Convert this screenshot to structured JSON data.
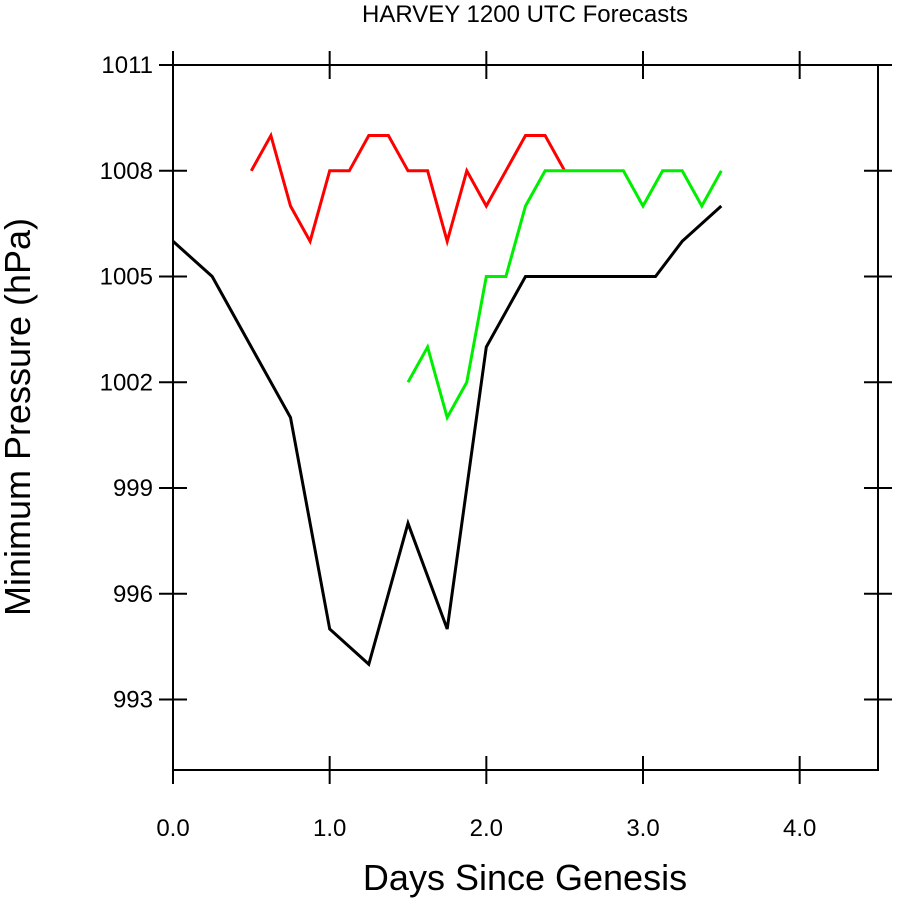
{
  "chart_data": {
    "type": "line",
    "title": "HARVEY 1200 UTC Forecasts",
    "xlabel": "Days Since Genesis",
    "ylabel": "Minimum Pressure (hPa)",
    "xlim": [
      0,
      4.5
    ],
    "ylim": [
      991,
      1011
    ],
    "x_ticks": [
      0,
      1,
      2,
      3,
      4
    ],
    "x_tick_labels": [
      "0.0",
      "1.0",
      "2.0",
      "3.0",
      "4.0"
    ],
    "y_ticks": [
      993,
      996,
      999,
      1002,
      1005,
      1008,
      1011
    ],
    "y_tick_labels": [
      "993",
      "996",
      "999",
      "1002",
      "1005",
      "1008",
      "1011"
    ],
    "grid": false,
    "series": [
      {
        "color": "#000000",
        "x": [
          0.0,
          0.25,
          0.5,
          0.75,
          1.0,
          1.25,
          1.5,
          1.75,
          2.0,
          2.25,
          2.5,
          2.75,
          3.0,
          3.08,
          3.25,
          3.5
        ],
        "values": [
          1006,
          1005,
          1003,
          1001,
          995,
          994,
          998,
          995,
          1003,
          1005,
          1005,
          1005,
          1005,
          1005,
          1006,
          1007
        ]
      },
      {
        "color": "#ff0000",
        "x": [
          0.5,
          0.625,
          0.75,
          0.875,
          1.0,
          1.125,
          1.25,
          1.375,
          1.5,
          1.625,
          1.75,
          1.875,
          2.0,
          2.125,
          2.25,
          2.375,
          2.5
        ],
        "values": [
          1008,
          1009,
          1007,
          1006,
          1008,
          1008,
          1009,
          1009,
          1008,
          1008,
          1006,
          1008,
          1007,
          1008,
          1009,
          1009,
          1008
        ]
      },
      {
        "color": "#00ee00",
        "x": [
          1.5,
          1.625,
          1.75,
          1.875,
          2.0,
          2.125,
          2.25,
          2.375,
          2.5,
          2.625,
          2.75,
          2.875,
          3.0,
          3.125,
          3.25,
          3.375,
          3.5
        ],
        "values": [
          1002,
          1003,
          1001,
          1002,
          1005,
          1005,
          1007,
          1008,
          1008,
          1008,
          1008,
          1008,
          1007,
          1008,
          1008,
          1007,
          1008
        ]
      }
    ]
  }
}
